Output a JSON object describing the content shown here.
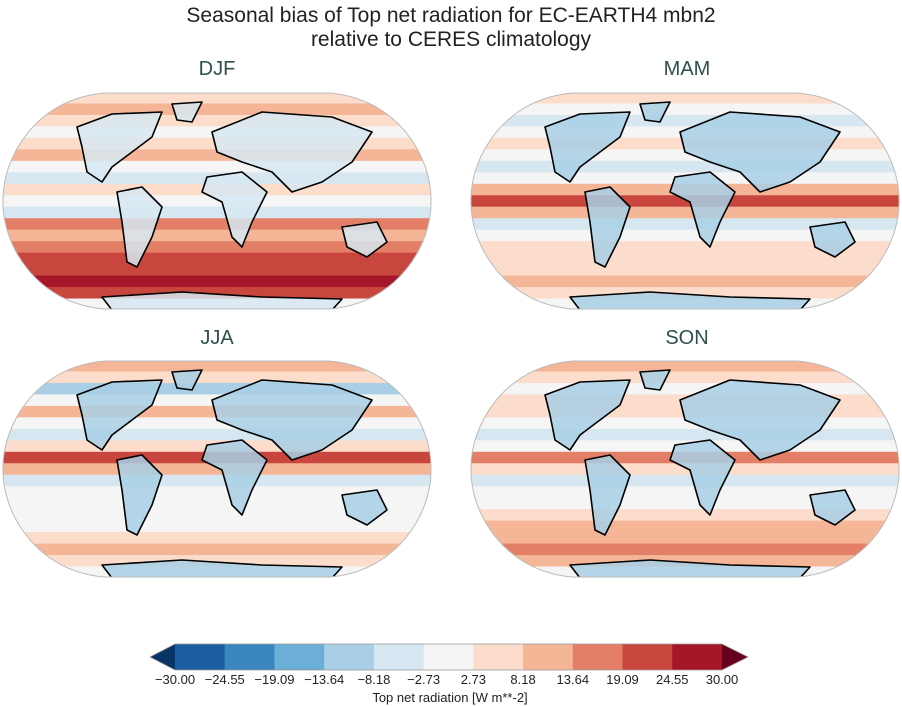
{
  "figure": {
    "title_line1": "Seasonal bias of Top net radiation for EC-EARTH4 mbn2",
    "title_line2": "relative to CERES climatology"
  },
  "panels": [
    {
      "label": "DJF"
    },
    {
      "label": "MAM"
    },
    {
      "label": "JJA"
    },
    {
      "label": "SON"
    }
  ],
  "colorbar": {
    "label": "Top net radiation [W m**-2]",
    "ticks": [
      "−30.00",
      "−24.55",
      "−19.09",
      "−13.64",
      "−8.18",
      "−2.73",
      "2.73",
      "8.18",
      "13.64",
      "19.09",
      "24.55",
      "30.00"
    ],
    "colors": [
      "#1c5ea0",
      "#3a87c0",
      "#6baed6",
      "#a8cfe5",
      "#d6e7f1",
      "#f5f5f5",
      "#fcdccb",
      "#f5b597",
      "#e47f67",
      "#c9463f",
      "#a41628"
    ],
    "under_color": "#083466",
    "over_color": "#67001f",
    "extend": "both"
  }
}
